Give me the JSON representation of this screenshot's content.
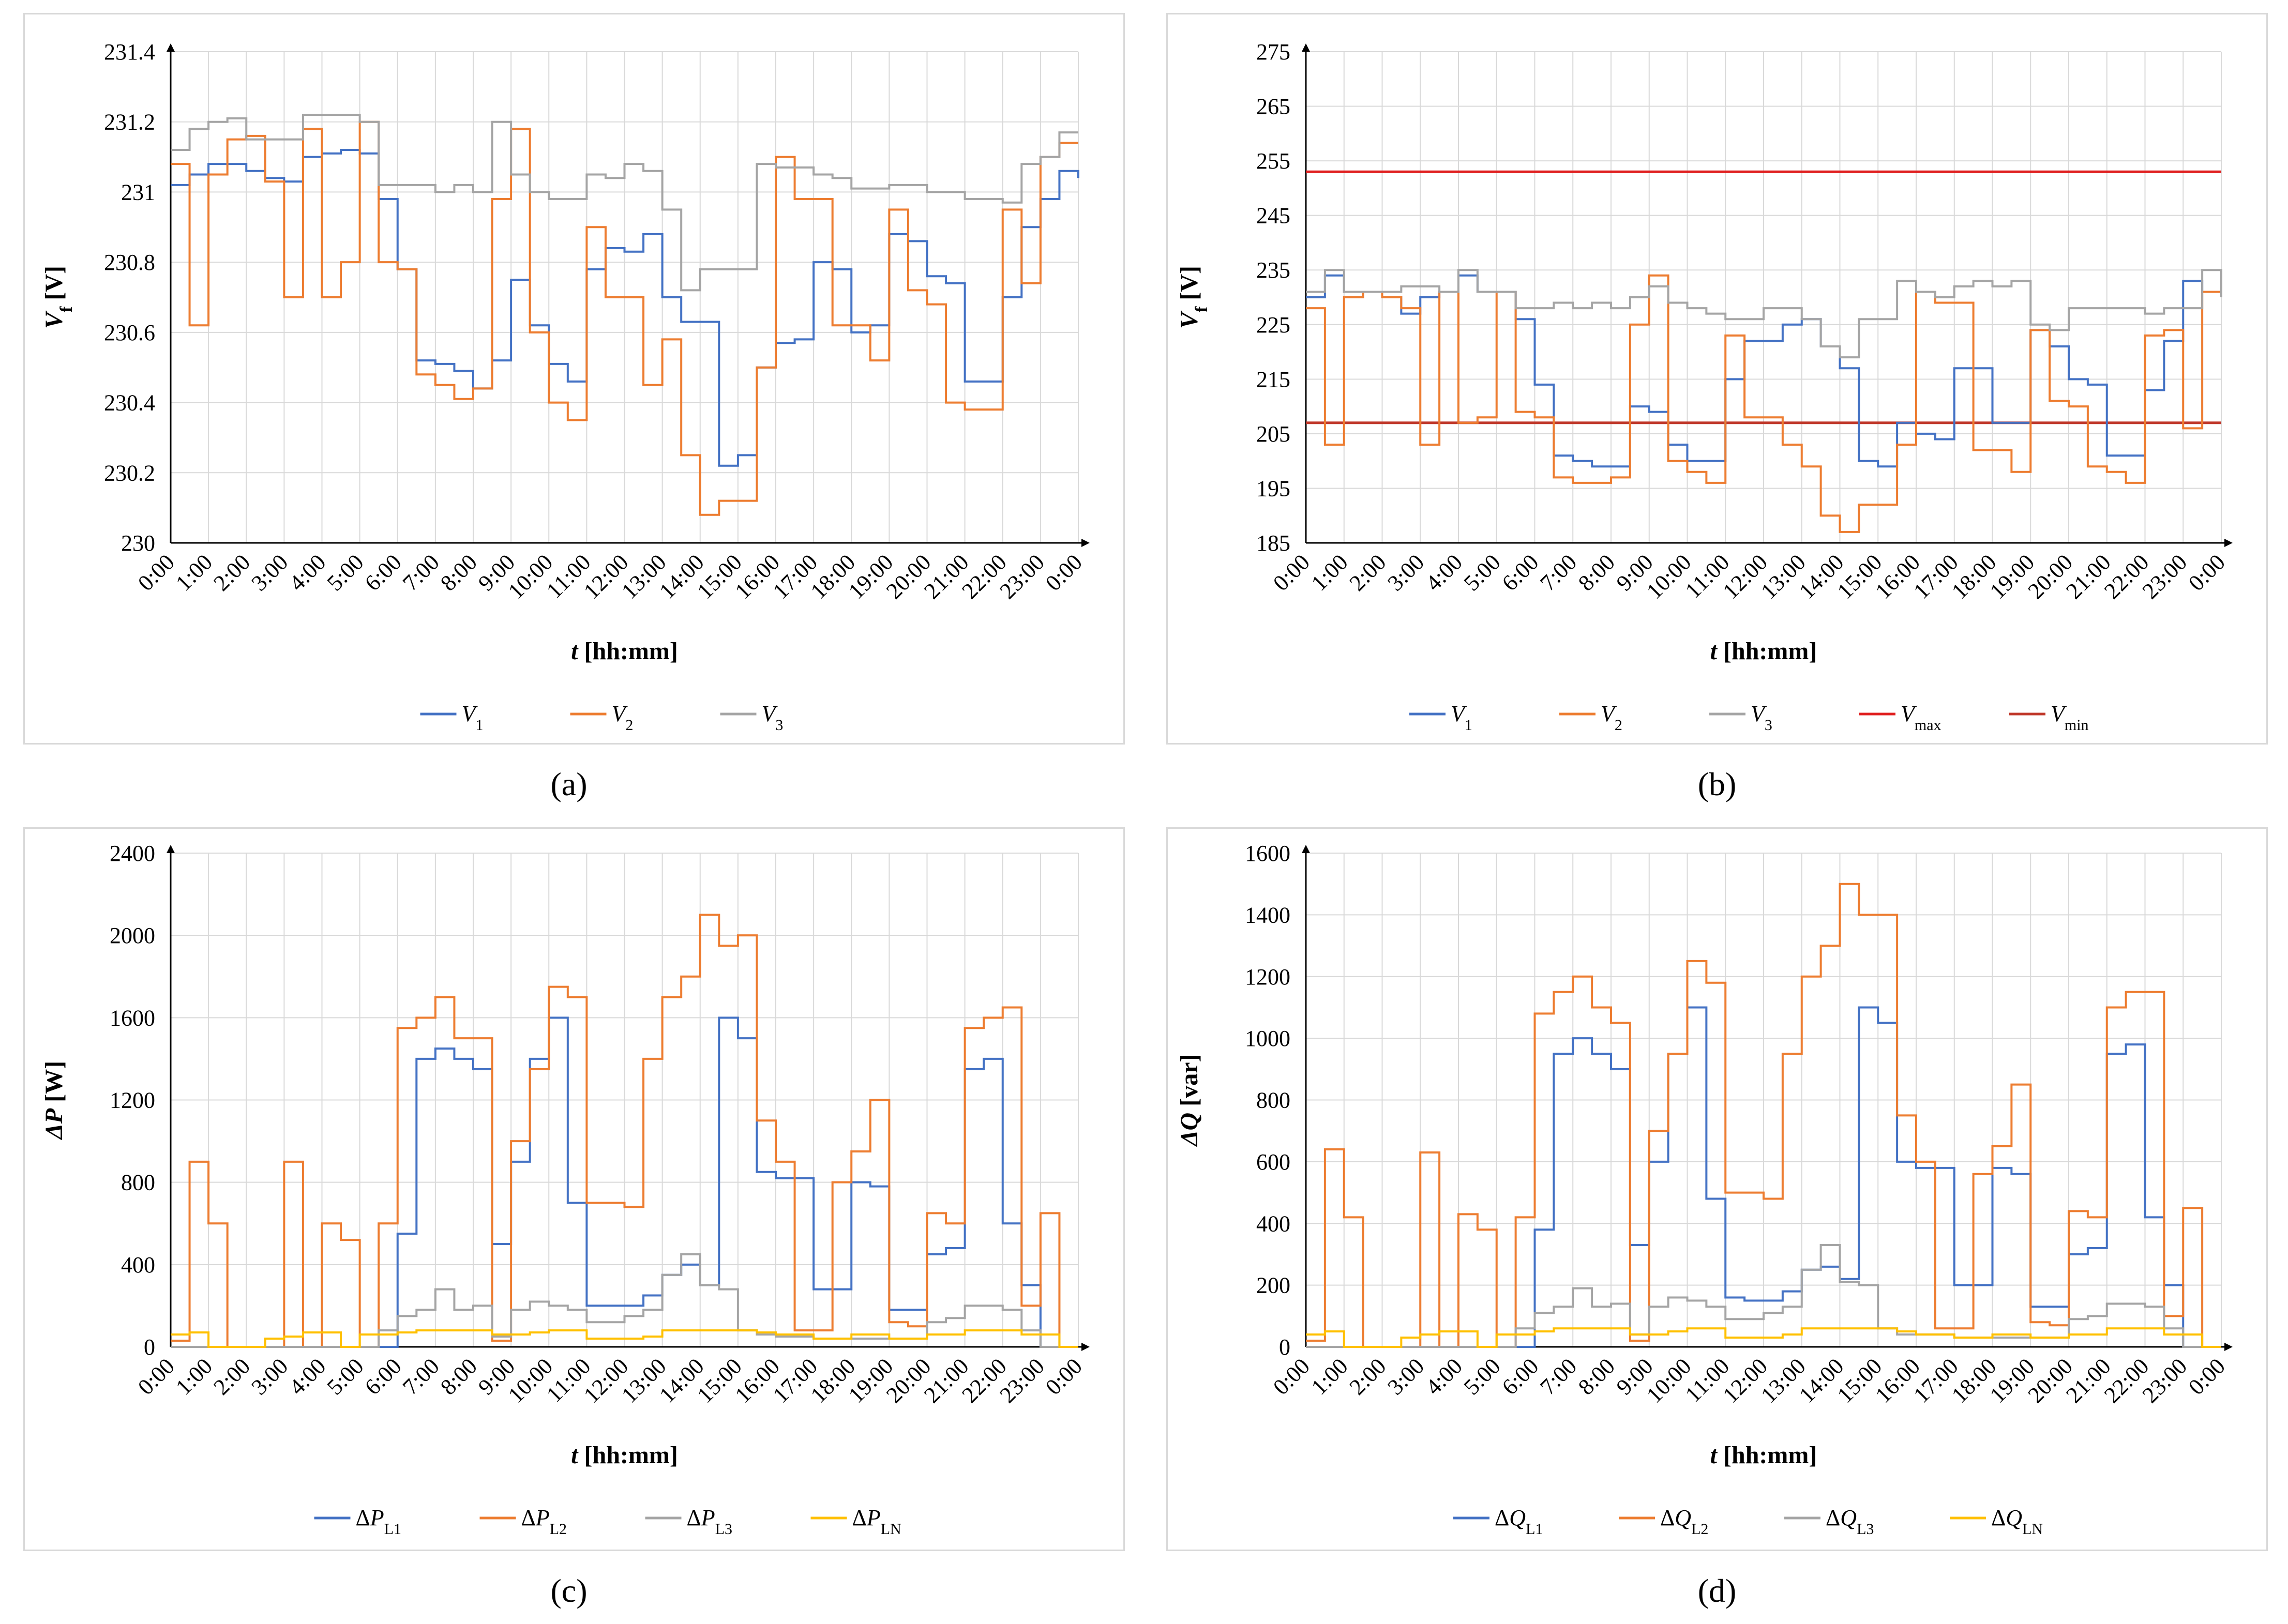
{
  "figure": {
    "panel_labels": [
      "(a)",
      "(b)",
      "(c)",
      "(d)"
    ]
  },
  "chart_data": [
    {
      "id": "a",
      "type": "line",
      "xlabel": "t [hh:mm]",
      "ylabel": "Vf [V]",
      "ylabel_main": "V",
      "ylabel_sub": "f",
      "ylabel_unit": " [V]",
      "ylim": [
        230,
        231.4
      ],
      "yticks": [
        230,
        230.2,
        230.4,
        230.6,
        230.8,
        231,
        231.2,
        231.4
      ],
      "ytick_labels": [
        "230",
        "230.2",
        "230.4",
        "230.6",
        "230.8",
        "231",
        "231.2",
        "231.4"
      ],
      "x": [
        0,
        0.5,
        1,
        1.5,
        2,
        2.5,
        3,
        3.5,
        4,
        4.5,
        5,
        5.5,
        6,
        6.5,
        7,
        7.5,
        8,
        8.5,
        9,
        9.5,
        10,
        10.5,
        11,
        11.5,
        12,
        12.5,
        13,
        13.5,
        14,
        14.5,
        15,
        15.5,
        16,
        16.5,
        17,
        17.5,
        18,
        18.5,
        19,
        19.5,
        20,
        20.5,
        21,
        21.5,
        22,
        22.5,
        23,
        23.5,
        24
      ],
      "xlim": [
        0,
        24
      ],
      "series": [
        {
          "name": "V1",
          "sub": "1",
          "color": "#4472c4",
          "values": [
            231.02,
            231.05,
            231.08,
            231.08,
            231.06,
            231.04,
            231.03,
            231.1,
            231.11,
            231.12,
            231.11,
            230.98,
            230.78,
            230.52,
            230.51,
            230.49,
            230.44,
            230.52,
            230.75,
            230.62,
            230.51,
            230.46,
            230.78,
            230.84,
            230.83,
            230.88,
            230.7,
            230.63,
            230.63,
            230.22,
            230.25,
            230.5,
            230.57,
            230.58,
            230.8,
            230.78,
            230.6,
            230.62,
            230.88,
            230.86,
            230.76,
            230.74,
            230.46,
            230.46,
            230.7,
            230.9,
            230.98,
            231.06,
            231.04
          ]
        },
        {
          "name": "V2",
          "sub": "2",
          "color": "#ed7d31",
          "values": [
            231.08,
            230.62,
            231.05,
            231.15,
            231.16,
            231.03,
            230.7,
            231.18,
            230.7,
            230.8,
            231.2,
            230.8,
            230.78,
            230.48,
            230.45,
            230.41,
            230.44,
            230.98,
            231.18,
            230.6,
            230.4,
            230.35,
            230.9,
            230.7,
            230.7,
            230.45,
            230.58,
            230.25,
            230.08,
            230.12,
            230.12,
            230.5,
            231.1,
            230.98,
            230.98,
            230.62,
            230.62,
            230.52,
            230.95,
            230.72,
            230.68,
            230.4,
            230.38,
            230.38,
            230.95,
            230.74,
            231.1,
            231.14,
            231.14
          ]
        },
        {
          "name": "V3",
          "sub": "3",
          "color": "#a5a5a5",
          "values": [
            231.12,
            231.18,
            231.2,
            231.21,
            231.15,
            231.15,
            231.15,
            231.22,
            231.22,
            231.22,
            231.2,
            231.02,
            231.02,
            231.02,
            231.0,
            231.02,
            231.0,
            231.2,
            231.05,
            231.0,
            230.98,
            230.98,
            231.05,
            231.04,
            231.08,
            231.06,
            230.95,
            230.72,
            230.78,
            230.78,
            230.78,
            231.08,
            231.07,
            231.07,
            231.05,
            231.04,
            231.01,
            231.01,
            231.02,
            231.02,
            231.0,
            231.0,
            230.98,
            230.98,
            230.97,
            231.08,
            231.1,
            231.17,
            231.17
          ]
        }
      ]
    },
    {
      "id": "b",
      "type": "line",
      "xlabel": "t [hh:mm]",
      "ylabel": "Vf [V]",
      "ylabel_main": "V",
      "ylabel_sub": "f",
      "ylabel_unit": " [V]",
      "ylim": [
        185,
        275
      ],
      "yticks": [
        185,
        195,
        205,
        215,
        225,
        235,
        245,
        255,
        265,
        275
      ],
      "ytick_labels": [
        "185",
        "195",
        "205",
        "215",
        "225",
        "235",
        "245",
        "255",
        "265",
        "275"
      ],
      "x": [
        0,
        0.5,
        1,
        1.5,
        2,
        2.5,
        3,
        3.5,
        4,
        4.5,
        5,
        5.5,
        6,
        6.5,
        7,
        7.5,
        8,
        8.5,
        9,
        9.5,
        10,
        10.5,
        11,
        11.5,
        12,
        12.5,
        13,
        13.5,
        14,
        14.5,
        15,
        15.5,
        16,
        16.5,
        17,
        17.5,
        18,
        18.5,
        19,
        19.5,
        20,
        20.5,
        21,
        21.5,
        22,
        22.5,
        23,
        23.5,
        24
      ],
      "xlim": [
        0,
        24
      ],
      "series": [
        {
          "name": "V1",
          "sub": "1",
          "color": "#4472c4",
          "values": [
            230,
            234,
            231,
            231,
            230,
            227,
            230,
            231,
            234,
            231,
            231,
            226,
            214,
            201,
            200,
            199,
            199,
            210,
            209,
            203,
            200,
            200,
            215,
            222,
            222,
            225,
            226,
            221,
            217,
            200,
            199,
            207,
            205,
            204,
            217,
            217,
            207,
            207,
            224,
            221,
            215,
            214,
            201,
            201,
            213,
            222,
            233,
            231,
            231
          ]
        },
        {
          "name": "V2",
          "sub": "2",
          "color": "#ed7d31",
          "values": [
            228,
            203,
            230,
            231,
            230,
            228,
            203,
            231,
            207,
            208,
            231,
            209,
            208,
            197,
            196,
            196,
            197,
            225,
            234,
            200,
            198,
            196,
            223,
            208,
            208,
            203,
            199,
            190,
            187,
            192,
            192,
            203,
            231,
            229,
            229,
            202,
            202,
            198,
            224,
            211,
            210,
            199,
            198,
            196,
            223,
            224,
            206,
            231,
            231
          ]
        },
        {
          "name": "V3",
          "sub": "3",
          "color": "#a5a5a5",
          "values": [
            231,
            235,
            231,
            231,
            231,
            232,
            232,
            231,
            235,
            231,
            231,
            228,
            228,
            229,
            228,
            229,
            228,
            230,
            232,
            229,
            228,
            227,
            226,
            226,
            228,
            228,
            226,
            221,
            219,
            226,
            226,
            233,
            231,
            230,
            232,
            233,
            232,
            233,
            225,
            224,
            228,
            228,
            228,
            228,
            227,
            228,
            228,
            235,
            230
          ]
        }
      ],
      "hlines": [
        {
          "name": "Vmax",
          "sub": "max",
          "color": "#e02020",
          "value": 253
        },
        {
          "name": "Vmin",
          "sub": "min",
          "color": "#c0392b",
          "value": 207
        }
      ]
    },
    {
      "id": "c",
      "type": "line",
      "xlabel": "t [hh:mm]",
      "ylabel": "ΔP [W]",
      "ylabel_main": "ΔP",
      "ylabel_sub": "",
      "ylabel_unit": " [W]",
      "ylim": [
        0,
        2400
      ],
      "yticks": [
        0,
        400,
        800,
        1200,
        1600,
        2000,
        2400
      ],
      "ytick_labels": [
        "0",
        "400",
        "800",
        "1200",
        "1600",
        "2000",
        "2400"
      ],
      "x": [
        0,
        0.5,
        1,
        1.5,
        2,
        2.5,
        3,
        3.5,
        4,
        4.5,
        5,
        5.5,
        6,
        6.5,
        7,
        7.5,
        8,
        8.5,
        9,
        9.5,
        10,
        10.5,
        11,
        11.5,
        12,
        12.5,
        13,
        13.5,
        14,
        14.5,
        15,
        15.5,
        16,
        16.5,
        17,
        17.5,
        18,
        18.5,
        19,
        19.5,
        20,
        20.5,
        21,
        21.5,
        22,
        22.5,
        23,
        23.5,
        24
      ],
      "xlim": [
        0,
        24
      ],
      "series": [
        {
          "name": "ΔPL1",
          "sub": "L1",
          "color": "#4472c4",
          "values": [
            0,
            0,
            0,
            0,
            0,
            0,
            0,
            0,
            0,
            0,
            0,
            0,
            550,
            1400,
            1450,
            1400,
            1350,
            500,
            900,
            1400,
            1600,
            700,
            200,
            200,
            200,
            250,
            350,
            400,
            300,
            1600,
            1500,
            850,
            820,
            820,
            280,
            280,
            800,
            780,
            180,
            180,
            450,
            480,
            1350,
            1400,
            600,
            300,
            0,
            0,
            0
          ]
        },
        {
          "name": "ΔPL2",
          "sub": "L2",
          "color": "#ed7d31",
          "values": [
            30,
            900,
            600,
            0,
            0,
            0,
            900,
            0,
            600,
            520,
            0,
            600,
            1550,
            1600,
            1700,
            1500,
            1500,
            30,
            1000,
            1350,
            1750,
            1700,
            700,
            700,
            680,
            1400,
            1700,
            1800,
            2100,
            1950,
            2000,
            1100,
            900,
            80,
            80,
            800,
            950,
            1200,
            120,
            100,
            650,
            600,
            1550,
            1600,
            1650,
            200,
            650,
            0,
            0
          ]
        },
        {
          "name": "ΔPL3",
          "sub": "L3",
          "color": "#a5a5a5",
          "values": [
            0,
            0,
            0,
            0,
            0,
            0,
            0,
            0,
            0,
            0,
            0,
            80,
            150,
            180,
            280,
            180,
            200,
            50,
            180,
            220,
            200,
            180,
            120,
            120,
            150,
            180,
            350,
            450,
            300,
            280,
            80,
            60,
            50,
            50,
            40,
            40,
            40,
            40,
            40,
            40,
            120,
            140,
            200,
            200,
            180,
            80,
            0,
            0,
            0
          ]
        },
        {
          "name": "ΔPLN",
          "sub": "LN",
          "color": "#ffc000",
          "values": [
            60,
            70,
            0,
            0,
            0,
            40,
            50,
            70,
            70,
            0,
            60,
            60,
            70,
            80,
            80,
            80,
            80,
            60,
            60,
            70,
            80,
            80,
            40,
            40,
            40,
            50,
            80,
            80,
            80,
            80,
            80,
            70,
            60,
            60,
            40,
            40,
            60,
            60,
            40,
            40,
            60,
            60,
            80,
            80,
            80,
            60,
            60,
            0,
            0
          ]
        }
      ]
    },
    {
      "id": "d",
      "type": "line",
      "xlabel": "t [hh:mm]",
      "ylabel": "ΔQ [var]",
      "ylabel_main": "ΔQ",
      "ylabel_sub": "",
      "ylabel_unit": " [var]",
      "ylim": [
        0,
        1600
      ],
      "yticks": [
        0,
        200,
        400,
        600,
        800,
        1000,
        1200,
        1400,
        1600
      ],
      "ytick_labels": [
        "0",
        "200",
        "400",
        "600",
        "800",
        "1000",
        "1200",
        "1400",
        "1600"
      ],
      "x": [
        0,
        0.5,
        1,
        1.5,
        2,
        2.5,
        3,
        3.5,
        4,
        4.5,
        5,
        5.5,
        6,
        6.5,
        7,
        7.5,
        8,
        8.5,
        9,
        9.5,
        10,
        10.5,
        11,
        11.5,
        12,
        12.5,
        13,
        13.5,
        14,
        14.5,
        15,
        15.5,
        16,
        16.5,
        17,
        17.5,
        18,
        18.5,
        19,
        19.5,
        20,
        20.5,
        21,
        21.5,
        22,
        22.5,
        23,
        23.5,
        24
      ],
      "xlim": [
        0,
        24
      ],
      "series": [
        {
          "name": "ΔQL1",
          "sub": "L1",
          "color": "#4472c4",
          "values": [
            0,
            0,
            0,
            0,
            0,
            0,
            0,
            0,
            0,
            0,
            0,
            0,
            380,
            950,
            1000,
            950,
            900,
            330,
            600,
            950,
            1100,
            480,
            160,
            150,
            150,
            180,
            250,
            260,
            220,
            1100,
            1050,
            600,
            580,
            580,
            200,
            200,
            580,
            560,
            130,
            130,
            300,
            320,
            950,
            980,
            420,
            200,
            0,
            0,
            0
          ]
        },
        {
          "name": "ΔQL2",
          "sub": "L2",
          "color": "#ed7d31",
          "values": [
            20,
            640,
            420,
            0,
            0,
            0,
            630,
            0,
            430,
            380,
            0,
            420,
            1080,
            1150,
            1200,
            1100,
            1050,
            20,
            700,
            950,
            1250,
            1180,
            500,
            500,
            480,
            950,
            1200,
            1300,
            1500,
            1400,
            1400,
            750,
            600,
            60,
            60,
            560,
            650,
            850,
            80,
            70,
            440,
            420,
            1100,
            1150,
            1150,
            100,
            450,
            0,
            0
          ]
        },
        {
          "name": "ΔQL3",
          "sub": "L3",
          "color": "#a5a5a5",
          "values": [
            0,
            0,
            0,
            0,
            0,
            0,
            0,
            0,
            0,
            0,
            0,
            60,
            110,
            130,
            190,
            130,
            140,
            40,
            130,
            160,
            150,
            130,
            90,
            90,
            110,
            130,
            250,
            330,
            210,
            200,
            60,
            40,
            40,
            40,
            30,
            30,
            30,
            30,
            30,
            30,
            90,
            100,
            140,
            140,
            130,
            60,
            0,
            0,
            0
          ]
        },
        {
          "name": "ΔQLN",
          "sub": "LN",
          "color": "#ffc000",
          "values": [
            40,
            50,
            0,
            0,
            0,
            30,
            40,
            50,
            50,
            0,
            40,
            40,
            50,
            60,
            60,
            60,
            60,
            40,
            40,
            50,
            60,
            60,
            30,
            30,
            30,
            40,
            60,
            60,
            60,
            60,
            60,
            50,
            40,
            40,
            30,
            30,
            40,
            40,
            30,
            30,
            40,
            40,
            60,
            60,
            60,
            40,
            40,
            0,
            0
          ]
        }
      ]
    }
  ],
  "x_tick_labels": [
    "0:00",
    "1:00",
    "2:00",
    "3:00",
    "4:00",
    "5:00",
    "6:00",
    "7:00",
    "8:00",
    "9:00",
    "10:00",
    "11:00",
    "12:00",
    "13:00",
    "14:00",
    "15:00",
    "16:00",
    "17:00",
    "18:00",
    "19:00",
    "20:00",
    "21:00",
    "22:00",
    "23:00",
    "0:00"
  ]
}
